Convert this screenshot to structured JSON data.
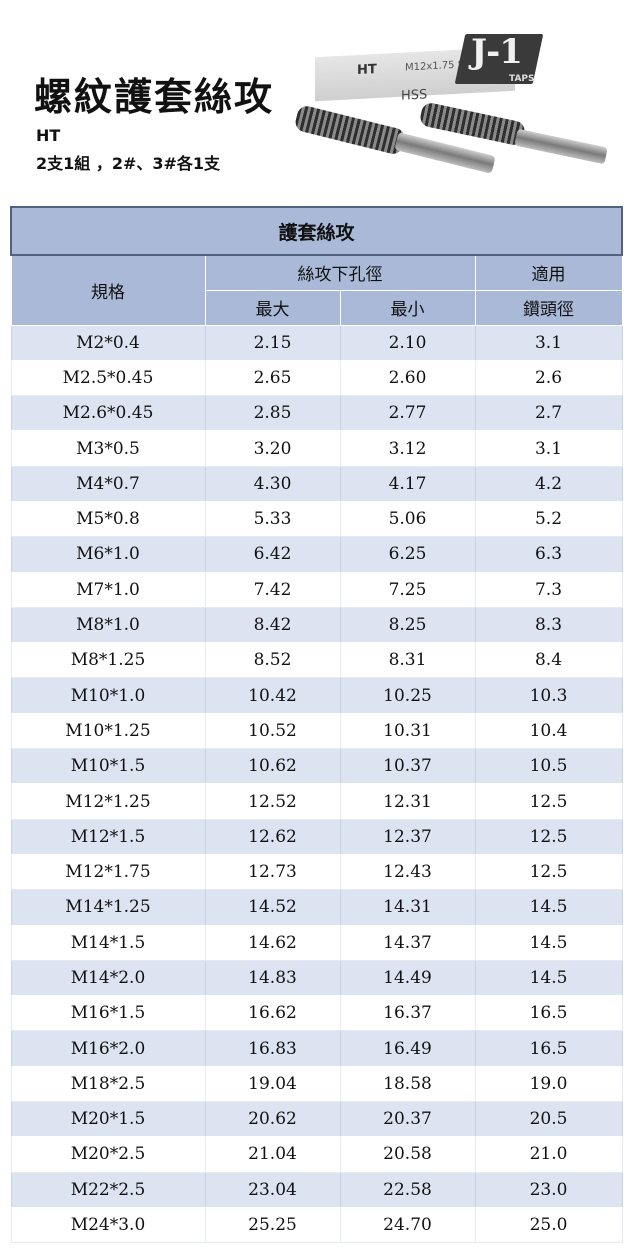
{
  "header": {
    "title": "螺紋護套絲攻",
    "model": "HT",
    "set_description": "2支1組 ，2#、3#各1支"
  },
  "product_image": {
    "label_ht": "HT",
    "label_spec": "M12x1.75 STI",
    "label_hss": "HSS",
    "label_brand": "J-1",
    "label_taps": "TAPS"
  },
  "table": {
    "caption": "護套絲攻",
    "headers": {
      "spec": "規格",
      "drill_hole": "絲攻下孔徑",
      "max": "最大",
      "min": "最小",
      "applicable_top": "適用",
      "applicable_bottom": "鑽頭徑"
    },
    "rows": [
      {
        "spec": "M2*0.4",
        "max": "2.15",
        "min": "2.10",
        "drill": "3.1"
      },
      {
        "spec": "M2.5*0.45",
        "max": "2.65",
        "min": "2.60",
        "drill": "2.6"
      },
      {
        "spec": "M2.6*0.45",
        "max": "2.85",
        "min": "2.77",
        "drill": "2.7"
      },
      {
        "spec": "M3*0.5",
        "max": "3.20",
        "min": "3.12",
        "drill": "3.1"
      },
      {
        "spec": "M4*0.7",
        "max": "4.30",
        "min": "4.17",
        "drill": "4.2"
      },
      {
        "spec": "M5*0.8",
        "max": "5.33",
        "min": "5.06",
        "drill": "5.2"
      },
      {
        "spec": "M6*1.0",
        "max": "6.42",
        "min": "6.25",
        "drill": "6.3"
      },
      {
        "spec": "M7*1.0",
        "max": "7.42",
        "min": "7.25",
        "drill": "7.3"
      },
      {
        "spec": "M8*1.0",
        "max": "8.42",
        "min": "8.25",
        "drill": "8.3"
      },
      {
        "spec": "M8*1.25",
        "max": "8.52",
        "min": "8.31",
        "drill": "8.4"
      },
      {
        "spec": "M10*1.0",
        "max": "10.42",
        "min": "10.25",
        "drill": "10.3"
      },
      {
        "spec": "M10*1.25",
        "max": "10.52",
        "min": "10.31",
        "drill": "10.4"
      },
      {
        "spec": "M10*1.5",
        "max": "10.62",
        "min": "10.37",
        "drill": "10.5"
      },
      {
        "spec": "M12*1.25",
        "max": "12.52",
        "min": "12.31",
        "drill": "12.5"
      },
      {
        "spec": "M12*1.5",
        "max": "12.62",
        "min": "12.37",
        "drill": "12.5"
      },
      {
        "spec": "M12*1.75",
        "max": "12.73",
        "min": "12.43",
        "drill": "12.5"
      },
      {
        "spec": "M14*1.25",
        "max": "14.52",
        "min": "14.31",
        "drill": "14.5"
      },
      {
        "spec": "M14*1.5",
        "max": "14.62",
        "min": "14.37",
        "drill": "14.5"
      },
      {
        "spec": "M14*2.0",
        "max": "14.83",
        "min": "14.49",
        "drill": "14.5"
      },
      {
        "spec": "M16*1.5",
        "max": "16.62",
        "min": "16.37",
        "drill": "16.5"
      },
      {
        "spec": "M16*2.0",
        "max": "16.83",
        "min": "16.49",
        "drill": "16.5"
      },
      {
        "spec": "M18*2.5",
        "max": "19.04",
        "min": "18.58",
        "drill": "19.0"
      },
      {
        "spec": "M20*1.5",
        "max": "20.62",
        "min": "20.37",
        "drill": "20.5"
      },
      {
        "spec": "M20*2.5",
        "max": "21.04",
        "min": "20.58",
        "drill": "21.0"
      },
      {
        "spec": "M22*2.5",
        "max": "23.04",
        "min": "22.58",
        "drill": "23.0"
      },
      {
        "spec": "M24*3.0",
        "max": "25.25",
        "min": "24.70",
        "drill": "25.0"
      }
    ]
  }
}
